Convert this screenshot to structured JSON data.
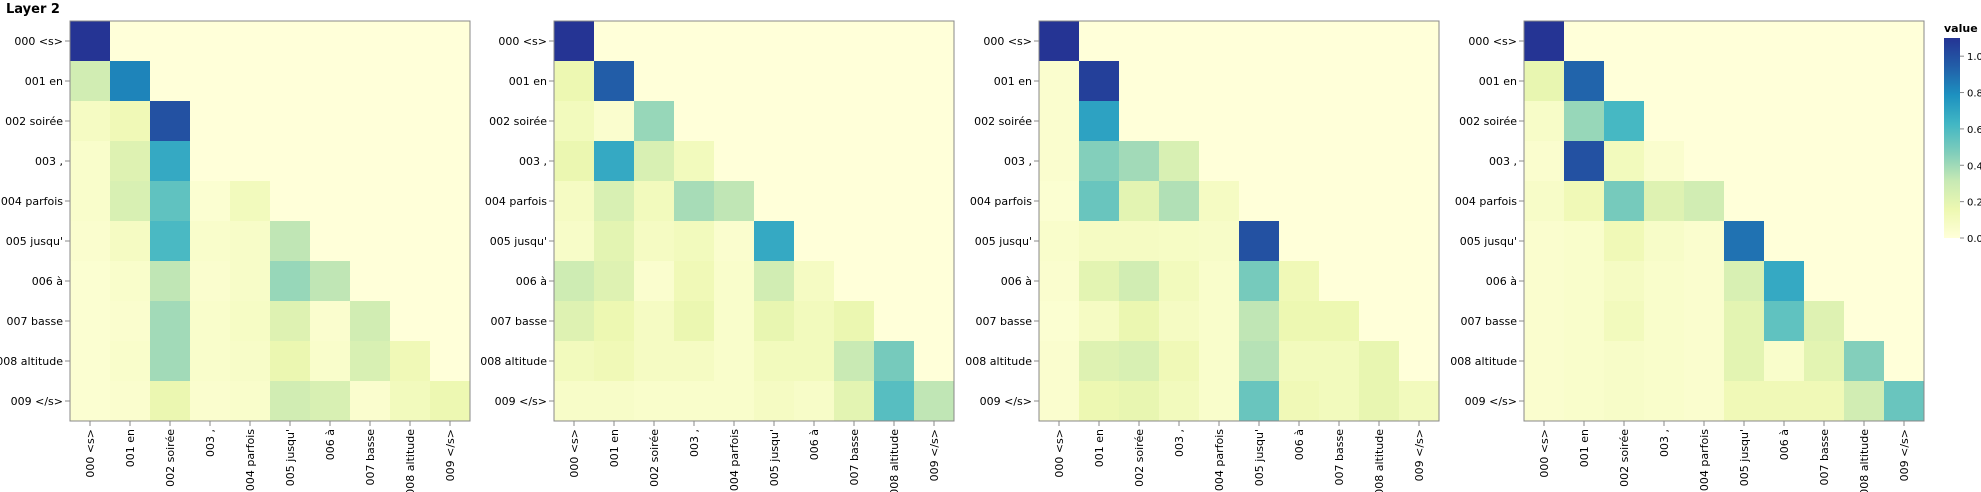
{
  "title": "Layer 2",
  "colors": {
    "scale": [
      "#ffffd9",
      "#edf8b1",
      "#c7e9b4",
      "#7fcdbb",
      "#41b6c4",
      "#1d91c0",
      "#225ea8",
      "#253494"
    ],
    "axis": "#888888"
  },
  "legend": {
    "title": "value",
    "ticks": [
      "1.0",
      "0.8",
      "0.6",
      "0.4",
      "0.2",
      "0.0"
    ]
  },
  "chart_data": [
    {
      "type": "heatmap",
      "x": [
        "000 <s>",
        "001 en",
        "002 soirée",
        "003 ,",
        "004 parfois",
        "005 jusqu'",
        "006 à",
        "007 basse",
        "008 altitude",
        "009 </s>"
      ],
      "y": [
        "000 <s>",
        "001 en",
        "002 soirée",
        "003 ,",
        "004 parfois",
        "005 jusqu'",
        "006 à",
        "007 basse",
        "008 altitude",
        "009 </s>"
      ],
      "values": [
        [
          1.0,
          0,
          0,
          0,
          0,
          0,
          0,
          0,
          0,
          0
        ],
        [
          0.25,
          0.75,
          0,
          0,
          0,
          0,
          0,
          0,
          0,
          0
        ],
        [
          0.08,
          0.12,
          0.9,
          0,
          0,
          0,
          0,
          0,
          0,
          0
        ],
        [
          0.05,
          0.2,
          0.62,
          0,
          0,
          0,
          0,
          0,
          0,
          0
        ],
        [
          0.05,
          0.22,
          0.5,
          0.03,
          0.1,
          0,
          0,
          0,
          0,
          0
        ],
        [
          0.04,
          0.08,
          0.55,
          0.05,
          0.06,
          0.3,
          0,
          0,
          0,
          0
        ],
        [
          0.03,
          0.05,
          0.3,
          0.04,
          0.06,
          0.38,
          0.3,
          0,
          0,
          0
        ],
        [
          0.03,
          0.04,
          0.36,
          0.05,
          0.07,
          0.2,
          0.04,
          0.25,
          0,
          0
        ],
        [
          0.03,
          0.05,
          0.36,
          0.05,
          0.06,
          0.15,
          0.05,
          0.22,
          0.12,
          0
        ],
        [
          0.03,
          0.04,
          0.15,
          0.04,
          0.05,
          0.25,
          0.22,
          0.04,
          0.1,
          0.14
        ]
      ]
    },
    {
      "type": "heatmap",
      "x": [
        "000 <s>",
        "001 en",
        "002 soirée",
        "003 ,",
        "004 parfois",
        "005 jusqu'",
        "006 à",
        "007 basse",
        "008 altitude",
        "009 </s>"
      ],
      "y": [
        "000 <s>",
        "001 en",
        "002 soirée",
        "003 ,",
        "004 parfois",
        "005 jusqu'",
        "006 à",
        "007 basse",
        "008 altitude",
        "009 </s>"
      ],
      "values": [
        [
          1.0,
          0,
          0,
          0,
          0,
          0,
          0,
          0,
          0,
          0
        ],
        [
          0.14,
          0.86,
          0,
          0,
          0,
          0,
          0,
          0,
          0,
          0
        ],
        [
          0.1,
          0.04,
          0.38,
          0,
          0,
          0,
          0,
          0,
          0,
          0
        ],
        [
          0.15,
          0.62,
          0.22,
          0.1,
          0,
          0,
          0,
          0,
          0,
          0
        ],
        [
          0.08,
          0.22,
          0.1,
          0.35,
          0.3,
          0,
          0,
          0,
          0,
          0
        ],
        [
          0.06,
          0.18,
          0.08,
          0.1,
          0.04,
          0.62,
          0,
          0,
          0,
          0
        ],
        [
          0.26,
          0.2,
          0.04,
          0.12,
          0.05,
          0.25,
          0.08,
          0,
          0,
          0
        ],
        [
          0.2,
          0.14,
          0.08,
          0.15,
          0.05,
          0.16,
          0.1,
          0.15,
          0,
          0
        ],
        [
          0.1,
          0.12,
          0.08,
          0.08,
          0.05,
          0.1,
          0.1,
          0.28,
          0.45,
          0
        ],
        [
          0.06,
          0.06,
          0.05,
          0.05,
          0.05,
          0.08,
          0.06,
          0.18,
          0.52,
          0.3
        ]
      ]
    },
    {
      "type": "heatmap",
      "x": [
        "000 <s>",
        "001 en",
        "002 soirée",
        "003 ,",
        "004 parfois",
        "005 jusqu'",
        "006 à",
        "007 basse",
        "008 altitude",
        "009 </s>"
      ],
      "y": [
        "000 <s>",
        "001 en",
        "002 soirée",
        "003 ,",
        "004 parfois",
        "005 jusqu'",
        "006 à",
        "007 basse",
        "008 altitude",
        "009 </s>"
      ],
      "values": [
        [
          1.0,
          0,
          0,
          0,
          0,
          0,
          0,
          0,
          0,
          0
        ],
        [
          0.04,
          0.96,
          0,
          0,
          0,
          0,
          0,
          0,
          0,
          0
        ],
        [
          0.04,
          0.65,
          0,
          0,
          0,
          0,
          0,
          0,
          0,
          0
        ],
        [
          0.04,
          0.42,
          0.36,
          0.22,
          0,
          0,
          0,
          0,
          0,
          0
        ],
        [
          0.03,
          0.48,
          0.18,
          0.33,
          0.08,
          0,
          0,
          0,
          0,
          0
        ],
        [
          0.05,
          0.08,
          0.08,
          0.07,
          0.06,
          0.9,
          0,
          0,
          0,
          0
        ],
        [
          0.04,
          0.18,
          0.25,
          0.1,
          0.05,
          0.45,
          0.12,
          0,
          0,
          0
        ],
        [
          0.03,
          0.08,
          0.15,
          0.08,
          0.05,
          0.3,
          0.14,
          0.14,
          0,
          0
        ],
        [
          0.04,
          0.2,
          0.22,
          0.12,
          0.05,
          0.32,
          0.1,
          0.1,
          0.16,
          0
        ],
        [
          0.04,
          0.14,
          0.16,
          0.1,
          0.05,
          0.48,
          0.12,
          0.1,
          0.16,
          0.1
        ]
      ]
    },
    {
      "type": "heatmap",
      "x": [
        "000 <s>",
        "001 en",
        "002 soirée",
        "003 ,",
        "004 parfois",
        "005 jusqu'",
        "006 à",
        "007 basse",
        "008 altitude",
        "009 </s>"
      ],
      "y": [
        "000 <s>",
        "001 en",
        "002 soirée",
        "003 ,",
        "004 parfois",
        "005 jusqu'",
        "006 à",
        "007 basse",
        "008 altitude",
        "009 </s>"
      ],
      "values": [
        [
          1.0,
          0,
          0,
          0,
          0,
          0,
          0,
          0,
          0,
          0
        ],
        [
          0.16,
          0.84,
          0,
          0,
          0,
          0,
          0,
          0,
          0,
          0
        ],
        [
          0.06,
          0.38,
          0.56,
          0,
          0,
          0,
          0,
          0,
          0,
          0
        ],
        [
          0.04,
          0.9,
          0.1,
          0.04,
          0,
          0,
          0,
          0,
          0,
          0
        ],
        [
          0.06,
          0.12,
          0.45,
          0.2,
          0.25,
          0,
          0,
          0,
          0,
          0
        ],
        [
          0.04,
          0.05,
          0.12,
          0.06,
          0.04,
          0.8,
          0,
          0,
          0,
          0
        ],
        [
          0.04,
          0.05,
          0.08,
          0.05,
          0.04,
          0.22,
          0.62,
          0,
          0,
          0
        ],
        [
          0.04,
          0.05,
          0.1,
          0.05,
          0.04,
          0.18,
          0.5,
          0.2,
          0,
          0
        ],
        [
          0.04,
          0.05,
          0.06,
          0.05,
          0.04,
          0.18,
          0.05,
          0.18,
          0.42,
          0
        ],
        [
          0.04,
          0.05,
          0.06,
          0.05,
          0.04,
          0.12,
          0.12,
          0.12,
          0.25,
          0.48
        ]
      ]
    }
  ]
}
